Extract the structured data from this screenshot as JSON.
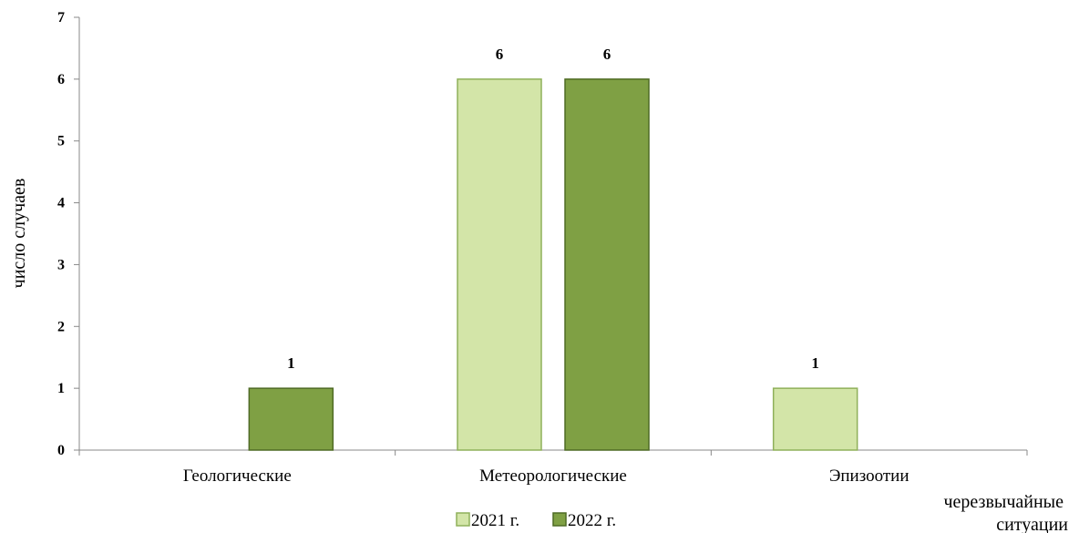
{
  "chart_data": {
    "type": "bar",
    "categories": [
      "Геологические",
      "Метеорологические",
      "Эпизоотии"
    ],
    "series": [
      {
        "name": "2021 г.",
        "values": [
          0,
          6,
          1
        ],
        "color": "#d3e5a8",
        "stroke": "#8fb05a"
      },
      {
        "name": "2022 г.",
        "values": [
          1,
          6,
          0
        ],
        "color": "#7fa044",
        "stroke": "#4f6b25"
      }
    ],
    "data_labels": [
      [
        null,
        "6",
        "1"
      ],
      [
        "1",
        "6",
        null
      ]
    ],
    "ylabel": "число случаев",
    "xlabel": "черезвычайные ситуации",
    "ylim": [
      0,
      7
    ],
    "yticks": [
      0,
      1,
      2,
      3,
      4,
      5,
      6,
      7
    ],
    "grid": false,
    "legend_position": "bottom-center"
  }
}
